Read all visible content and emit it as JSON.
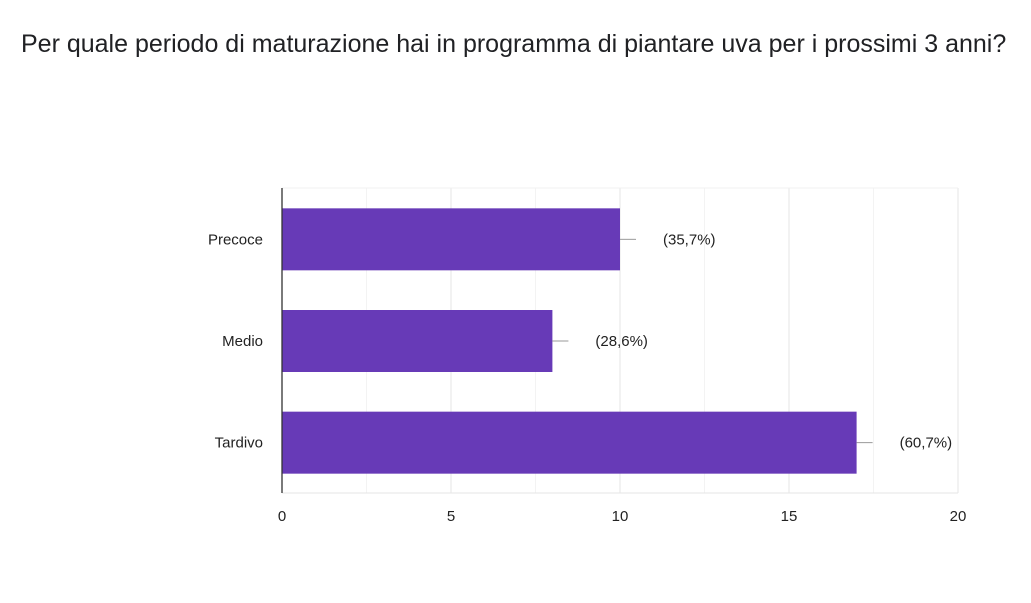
{
  "chart_data": {
    "type": "bar",
    "orientation": "horizontal",
    "title": "Per quale periodo di maturazione hai in programma di piantare uva per i prossimi 3 anni?",
    "categories": [
      "Precoce",
      "Medio",
      "Tardivo"
    ],
    "values": [
      10,
      8,
      17
    ],
    "data_labels": [
      "(35,7%)",
      "(28,6%)",
      "(60,7%)"
    ],
    "xlim": [
      0,
      20
    ],
    "x_ticks": [
      0,
      5,
      10,
      15,
      20
    ],
    "grid": true,
    "bar_color": "#673ab7",
    "xlabel": "",
    "ylabel": ""
  }
}
